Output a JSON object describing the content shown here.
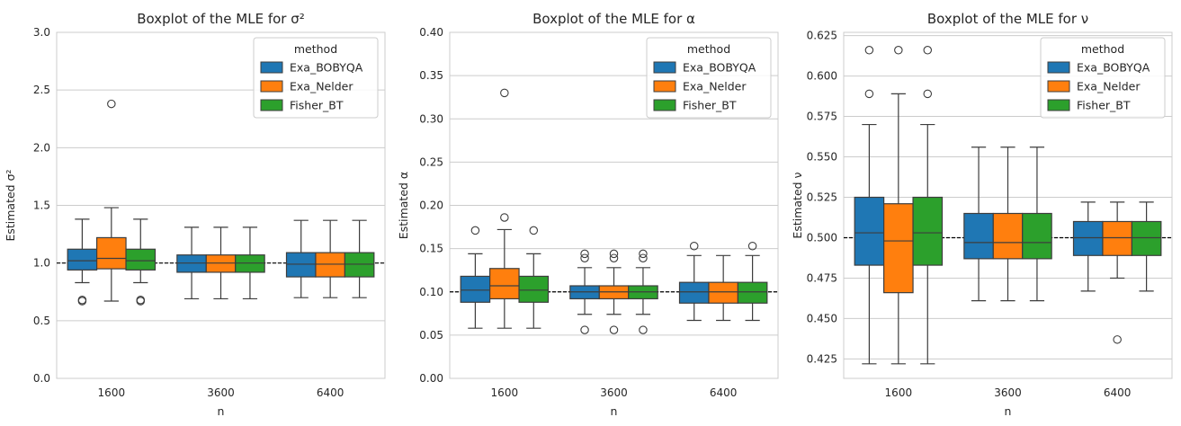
{
  "chart_data": [
    {
      "type": "box",
      "title": "Boxplot of the MLE for σ²",
      "xlabel": "n",
      "ylabel": "Estimated σ²",
      "ylim": [
        0.0,
        3.0
      ],
      "yticks": [
        "0.0",
        "0.5",
        "1.0",
        "1.5",
        "2.0",
        "2.5",
        "3.0"
      ],
      "categories": [
        "1600",
        "3600",
        "6400"
      ],
      "reference_line": 1.0,
      "legend": {
        "title": "method",
        "position": "top-right"
      },
      "series": [
        {
          "name": "Exa_BOBYQA",
          "color": "#1f77b4",
          "boxes": [
            {
              "whislo": 0.83,
              "q1": 0.94,
              "med": 1.02,
              "q3": 1.12,
              "whishi": 1.38,
              "fliers": [
                0.67,
                0.68
              ]
            },
            {
              "whislo": 0.69,
              "q1": 0.92,
              "med": 1.0,
              "q3": 1.07,
              "whishi": 1.31,
              "fliers": []
            },
            {
              "whislo": 0.7,
              "q1": 0.88,
              "med": 0.99,
              "q3": 1.09,
              "whishi": 1.37,
              "fliers": []
            }
          ]
        },
        {
          "name": "Exa_Nelder",
          "color": "#ff7f0e",
          "boxes": [
            {
              "whislo": 0.67,
              "q1": 0.95,
              "med": 1.04,
              "q3": 1.22,
              "whishi": 1.48,
              "fliers": [
                2.38
              ]
            },
            {
              "whislo": 0.69,
              "q1": 0.92,
              "med": 1.0,
              "q3": 1.07,
              "whishi": 1.31,
              "fliers": []
            },
            {
              "whislo": 0.7,
              "q1": 0.88,
              "med": 0.99,
              "q3": 1.09,
              "whishi": 1.37,
              "fliers": []
            }
          ]
        },
        {
          "name": "Fisher_BT",
          "color": "#2ca02c",
          "boxes": [
            {
              "whislo": 0.83,
              "q1": 0.94,
              "med": 1.02,
              "q3": 1.12,
              "whishi": 1.38,
              "fliers": [
                0.67,
                0.68
              ]
            },
            {
              "whislo": 0.69,
              "q1": 0.92,
              "med": 1.0,
              "q3": 1.07,
              "whishi": 1.31,
              "fliers": []
            },
            {
              "whislo": 0.7,
              "q1": 0.88,
              "med": 0.99,
              "q3": 1.09,
              "whishi": 1.37,
              "fliers": []
            }
          ]
        }
      ]
    },
    {
      "type": "box",
      "title": "Boxplot of the MLE for α",
      "xlabel": "n",
      "ylabel": "Estimated α",
      "ylim": [
        0.0,
        0.4
      ],
      "yticks": [
        "0.00",
        "0.05",
        "0.10",
        "0.15",
        "0.20",
        "0.25",
        "0.30",
        "0.35",
        "0.40"
      ],
      "categories": [
        "1600",
        "3600",
        "6400"
      ],
      "reference_line": 0.1,
      "legend": {
        "title": "method",
        "position": "top-right"
      },
      "series": [
        {
          "name": "Exa_BOBYQA",
          "color": "#1f77b4",
          "boxes": [
            {
              "whislo": 0.058,
              "q1": 0.088,
              "med": 0.102,
              "q3": 0.118,
              "whishi": 0.144,
              "fliers": [
                0.171
              ]
            },
            {
              "whislo": 0.074,
              "q1": 0.092,
              "med": 0.1,
              "q3": 0.107,
              "whishi": 0.128,
              "fliers": [
                0.056,
                0.139,
                0.144
              ]
            },
            {
              "whislo": 0.067,
              "q1": 0.087,
              "med": 0.1,
              "q3": 0.111,
              "whishi": 0.142,
              "fliers": [
                0.153
              ]
            }
          ]
        },
        {
          "name": "Exa_Nelder",
          "color": "#ff7f0e",
          "boxes": [
            {
              "whislo": 0.058,
              "q1": 0.092,
              "med": 0.107,
              "q3": 0.127,
              "whishi": 0.172,
              "fliers": [
                0.186,
                0.33
              ]
            },
            {
              "whislo": 0.074,
              "q1": 0.092,
              "med": 0.1,
              "q3": 0.107,
              "whishi": 0.128,
              "fliers": [
                0.056,
                0.139,
                0.144
              ]
            },
            {
              "whislo": 0.067,
              "q1": 0.087,
              "med": 0.1,
              "q3": 0.111,
              "whishi": 0.142,
              "fliers": []
            }
          ]
        },
        {
          "name": "Fisher_BT",
          "color": "#2ca02c",
          "boxes": [
            {
              "whislo": 0.058,
              "q1": 0.088,
              "med": 0.102,
              "q3": 0.118,
              "whishi": 0.144,
              "fliers": [
                0.171
              ]
            },
            {
              "whislo": 0.074,
              "q1": 0.092,
              "med": 0.1,
              "q3": 0.107,
              "whishi": 0.128,
              "fliers": [
                0.056,
                0.139,
                0.144
              ]
            },
            {
              "whislo": 0.067,
              "q1": 0.087,
              "med": 0.1,
              "q3": 0.111,
              "whishi": 0.142,
              "fliers": [
                0.153
              ]
            }
          ]
        }
      ]
    },
    {
      "type": "box",
      "title": "Boxplot of the MLE for ν",
      "xlabel": "n",
      "ylabel": "Estimated ν",
      "ylim": [
        0.413,
        0.627
      ],
      "yticks": [
        "0.425",
        "0.450",
        "0.475",
        "0.500",
        "0.525",
        "0.550",
        "0.575",
        "0.600",
        "0.625"
      ],
      "categories": [
        "1600",
        "3600",
        "6400"
      ],
      "reference_line": 0.5,
      "legend": {
        "title": "method",
        "position": "top-right"
      },
      "series": [
        {
          "name": "Exa_BOBYQA",
          "color": "#1f77b4",
          "boxes": [
            {
              "whislo": 0.422,
              "q1": 0.483,
              "med": 0.503,
              "q3": 0.525,
              "whishi": 0.57,
              "fliers": [
                0.589,
                0.616
              ]
            },
            {
              "whislo": 0.461,
              "q1": 0.487,
              "med": 0.497,
              "q3": 0.515,
              "whishi": 0.556,
              "fliers": []
            },
            {
              "whislo": 0.467,
              "q1": 0.489,
              "med": 0.5,
              "q3": 0.51,
              "whishi": 0.522,
              "fliers": []
            }
          ]
        },
        {
          "name": "Exa_Nelder",
          "color": "#ff7f0e",
          "boxes": [
            {
              "whislo": 0.422,
              "q1": 0.466,
              "med": 0.498,
              "q3": 0.521,
              "whishi": 0.589,
              "fliers": [
                0.616
              ]
            },
            {
              "whislo": 0.461,
              "q1": 0.487,
              "med": 0.497,
              "q3": 0.515,
              "whishi": 0.556,
              "fliers": []
            },
            {
              "whislo": 0.475,
              "q1": 0.489,
              "med": 0.5,
              "q3": 0.51,
              "whishi": 0.522,
              "fliers": [
                0.437
              ]
            }
          ]
        },
        {
          "name": "Fisher_BT",
          "color": "#2ca02c",
          "boxes": [
            {
              "whislo": 0.422,
              "q1": 0.483,
              "med": 0.503,
              "q3": 0.525,
              "whishi": 0.57,
              "fliers": [
                0.589,
                0.616
              ]
            },
            {
              "whislo": 0.461,
              "q1": 0.487,
              "med": 0.497,
              "q3": 0.515,
              "whishi": 0.556,
              "fliers": []
            },
            {
              "whislo": 0.467,
              "q1": 0.489,
              "med": 0.5,
              "q3": 0.51,
              "whishi": 0.522,
              "fliers": []
            }
          ]
        }
      ]
    }
  ]
}
